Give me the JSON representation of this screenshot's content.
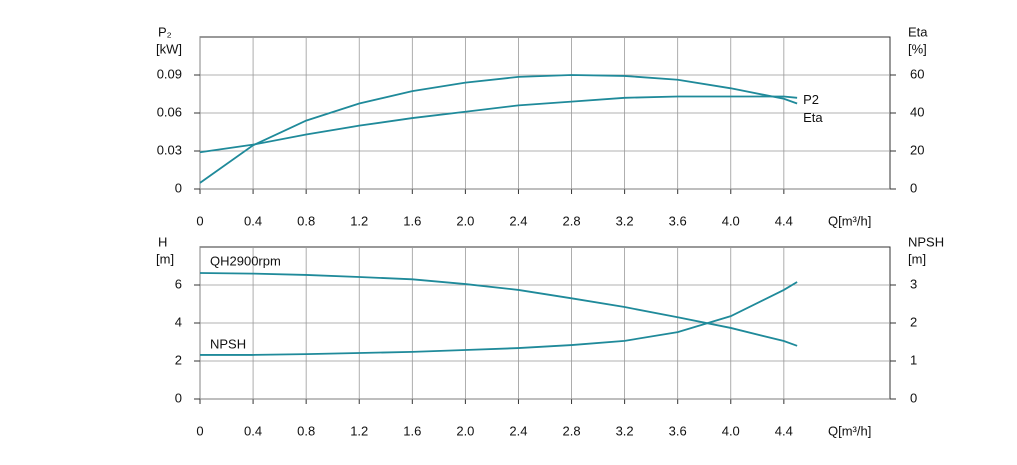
{
  "chart_data": [
    {
      "type": "line",
      "y_label": "P₂",
      "y_unit": "[kW]",
      "y2_label": "Eta",
      "y2_unit": "[%]",
      "x_label": "Q[m³/h]",
      "x": [
        0,
        0.4,
        0.8,
        1.2,
        1.6,
        2.0,
        2.4,
        2.8,
        3.2,
        3.6,
        4.0,
        4.4,
        4.5
      ],
      "series": [
        {
          "name": "P2",
          "color": "#1f8a9a",
          "values": [
            0.029,
            0.035,
            0.043,
            0.05,
            0.056,
            0.061,
            0.066,
            0.069,
            0.072,
            0.073,
            0.073,
            0.073,
            0.072
          ]
        },
        {
          "name": "Eta",
          "color": "#1f8a9a",
          "axis": "y2",
          "values": [
            3.2,
            23,
            36,
            45,
            51.5,
            56,
            59,
            60,
            59.5,
            57.5,
            53,
            47.5,
            45
          ]
        }
      ],
      "xlim": [
        0,
        5.2
      ],
      "xticks": [
        0,
        0.4,
        0.8,
        1.2,
        1.6,
        {
          "value": 2,
          "label": "2.0"
        },
        2.4,
        2.8,
        3.2,
        3.6,
        {
          "value": 4,
          "label": "4.0"
        },
        4.4
      ],
      "ylim": [
        0,
        0.12
      ],
      "yticks": [
        0,
        0.03,
        0.06,
        0.09
      ],
      "y2lim": [
        0,
        80
      ],
      "y2ticks": [
        0,
        20,
        40,
        60
      ],
      "grid": true
    },
    {
      "type": "line",
      "y_label": "H",
      "y_unit": "[m]",
      "y2_label": "NPSH",
      "y2_unit": "[m]",
      "x_label": "Q[m³/h]",
      "x": [
        0,
        0.4,
        0.8,
        1.2,
        1.6,
        2.0,
        2.4,
        2.8,
        3.2,
        3.6,
        4.0,
        4.4,
        4.5
      ],
      "series": [
        {
          "name": "QH2900rpm",
          "color": "#1f8a9a",
          "values": [
            6.63,
            6.6,
            6.53,
            6.42,
            6.3,
            6.05,
            5.74,
            5.3,
            4.84,
            4.3,
            3.74,
            3.05,
            2.8
          ]
        },
        {
          "name": "NPSH",
          "color": "#1f8a9a",
          "axis": "y2",
          "values": [
            1.16,
            1.16,
            1.18,
            1.21,
            1.24,
            1.29,
            1.34,
            1.42,
            1.53,
            1.76,
            2.18,
            2.87,
            3.08
          ]
        }
      ],
      "xlim": [
        0,
        5.2
      ],
      "xticks": [
        0,
        0.4,
        0.8,
        1.2,
        1.6,
        {
          "value": 2,
          "label": "2.0"
        },
        2.4,
        2.8,
        3.2,
        3.6,
        {
          "value": 4,
          "label": "4.0"
        },
        4.4
      ],
      "ylim": [
        0,
        8
      ],
      "yticks": [
        0,
        2,
        4,
        6
      ],
      "y2lim": [
        0,
        4
      ],
      "y2ticks": [
        0,
        1,
        2,
        3
      ],
      "grid": true
    }
  ]
}
